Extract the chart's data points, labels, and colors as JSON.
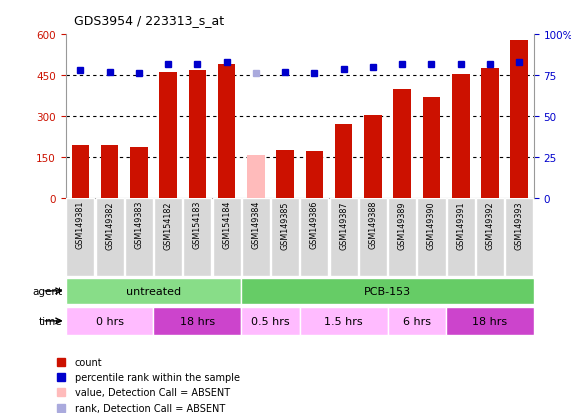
{
  "title": "GDS3954 / 223313_s_at",
  "samples": [
    "GSM149381",
    "GSM149382",
    "GSM149383",
    "GSM154182",
    "GSM154183",
    "GSM154184",
    "GSM149384",
    "GSM149385",
    "GSM149386",
    "GSM149387",
    "GSM149388",
    "GSM149389",
    "GSM149390",
    "GSM149391",
    "GSM149392",
    "GSM149393"
  ],
  "counts": [
    195,
    195,
    185,
    460,
    470,
    490,
    155,
    175,
    170,
    270,
    305,
    400,
    370,
    455,
    475,
    580
  ],
  "absent_mask": [
    false,
    false,
    false,
    false,
    false,
    false,
    true,
    false,
    false,
    false,
    false,
    false,
    false,
    false,
    false,
    false
  ],
  "percentile_ranks_pct": [
    78,
    77,
    76,
    82,
    82,
    83,
    76,
    77,
    76,
    79,
    80,
    82,
    82,
    82,
    82,
    83
  ],
  "absent_rank_mask": [
    false,
    false,
    false,
    false,
    false,
    false,
    true,
    false,
    false,
    false,
    false,
    false,
    false,
    false,
    false,
    false
  ],
  "bar_color_present": "#cc1100",
  "bar_color_absent": "#ffbbbb",
  "rank_color_present": "#0000cc",
  "rank_color_absent": "#aaaadd",
  "ylim_left": [
    0,
    600
  ],
  "ylim_right": [
    0,
    100
  ],
  "yticks_left": [
    0,
    150,
    300,
    450,
    600
  ],
  "yticks_right": [
    0,
    25,
    50,
    75,
    100
  ],
  "agent_groups": [
    {
      "label": "untreated",
      "start": 0,
      "end": 6,
      "color": "#88dd88"
    },
    {
      "label": "PCB-153",
      "start": 6,
      "end": 16,
      "color": "#66cc66"
    }
  ],
  "time_groups": [
    {
      "label": "0 hrs",
      "start": 0,
      "end": 3,
      "color": "#ffbbff"
    },
    {
      "label": "18 hrs",
      "start": 3,
      "end": 6,
      "color": "#cc44cc"
    },
    {
      "label": "0.5 hrs",
      "start": 6,
      "end": 8,
      "color": "#ffbbff"
    },
    {
      "label": "1.5 hrs",
      "start": 8,
      "end": 11,
      "color": "#ffbbff"
    },
    {
      "label": "6 hrs",
      "start": 11,
      "end": 13,
      "color": "#ffbbff"
    },
    {
      "label": "18 hrs",
      "start": 13,
      "end": 16,
      "color": "#cc44cc"
    }
  ],
  "legend_items": [
    {
      "color": "#cc1100",
      "label": "count"
    },
    {
      "color": "#0000cc",
      "label": "percentile rank within the sample"
    },
    {
      "color": "#ffbbbb",
      "label": "value, Detection Call = ABSENT"
    },
    {
      "color": "#aaaadd",
      "label": "rank, Detection Call = ABSENT"
    }
  ],
  "background_color": "#ffffff",
  "left_axis_color": "#cc1100",
  "right_axis_color": "#0000cc"
}
